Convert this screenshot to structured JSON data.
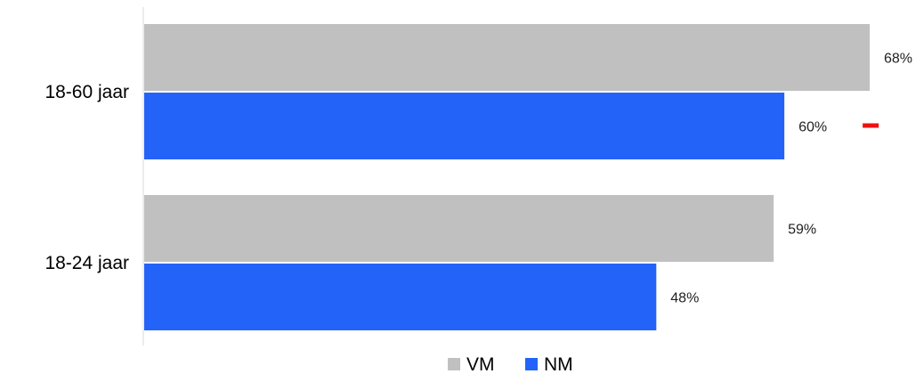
{
  "chart_data": {
    "type": "bar",
    "orientation": "horizontal",
    "categories": [
      "18-60 jaar",
      "18-24 jaar"
    ],
    "series": [
      {
        "name": "VM",
        "values": [
          68,
          59
        ],
        "value_labels": [
          "68%",
          "59%"
        ],
        "color": "#c0c0c0"
      },
      {
        "name": "NM",
        "values": [
          60,
          48
        ],
        "value_labels": [
          "60%",
          "48%"
        ],
        "color": "#2463f8"
      }
    ],
    "title": "",
    "xlabel": "",
    "ylabel": "",
    "xlim": [
      0,
      68
    ],
    "grid": false,
    "legend_position": "bottom",
    "annotations": [
      {
        "type": "red-dash-marker",
        "category": "18-60 jaar",
        "series": "NM",
        "color": "#ee1111"
      }
    ]
  }
}
